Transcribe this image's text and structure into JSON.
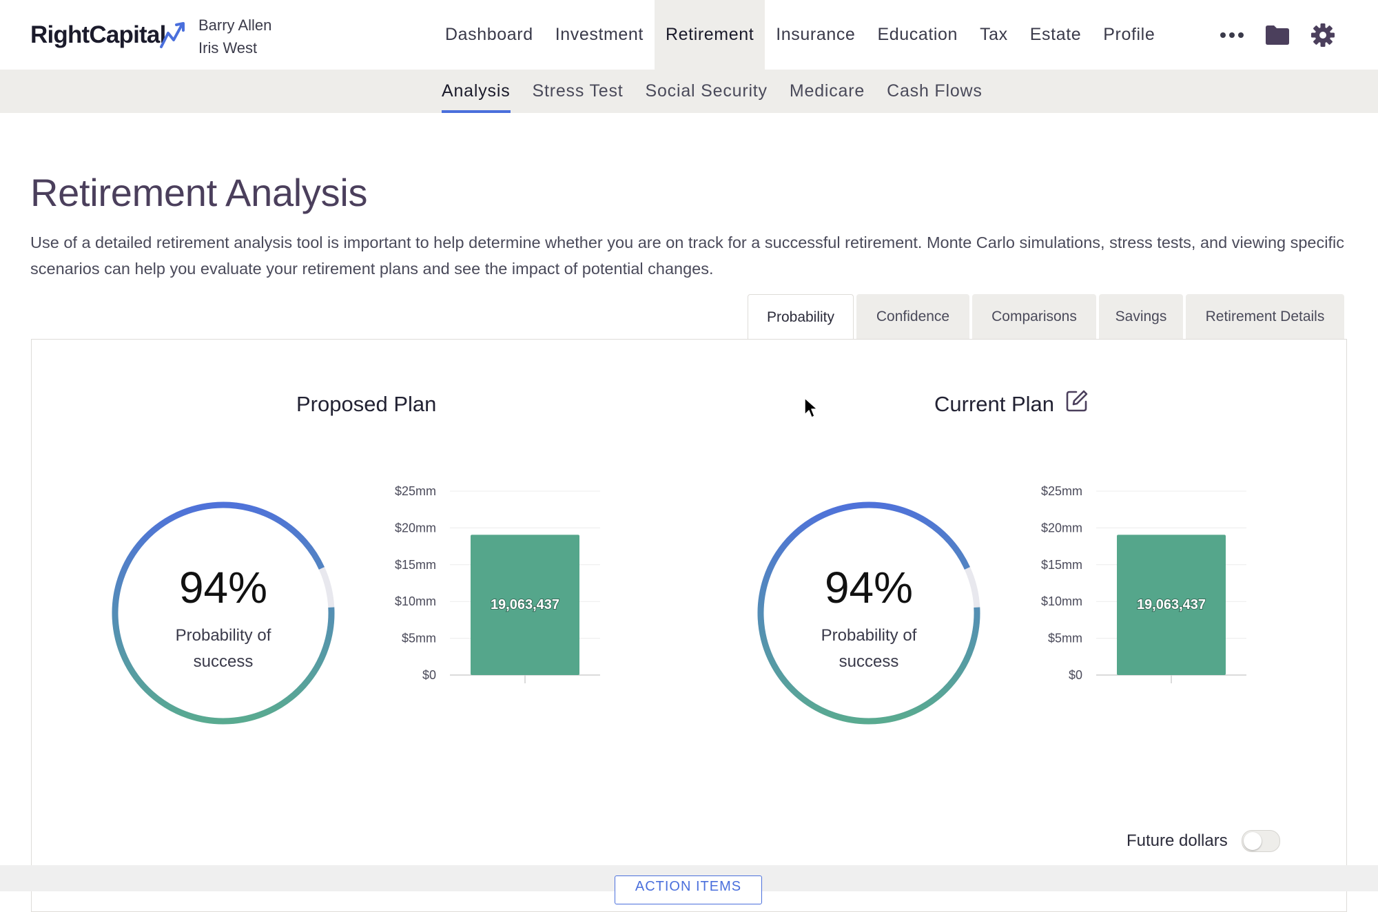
{
  "app": {
    "logo_text": "RightCapital",
    "clients": [
      "Barry Allen",
      "Iris West"
    ]
  },
  "main_nav": {
    "items": [
      "Dashboard",
      "Investment",
      "Retirement",
      "Insurance",
      "Education",
      "Tax",
      "Estate",
      "Profile"
    ],
    "active": "Retirement",
    "icons": [
      "more-icon",
      "folder-icon",
      "gear-icon"
    ]
  },
  "sub_nav": {
    "items": [
      "Analysis",
      "Stress Test",
      "Social Security",
      "Medicare",
      "Cash Flows"
    ],
    "active": "Analysis"
  },
  "page": {
    "title": "Retirement Analysis",
    "description": "Use of a detailed retirement analysis tool is important to help determine whether you are on track for a successful retirement. Monte Carlo simulations, stress tests, and viewing specific scenarios can help you evaluate your retirement plans and see the impact of potential changes."
  },
  "tabs": {
    "items": [
      "Probability",
      "Confidence",
      "Comparisons",
      "Savings",
      "Retirement Details"
    ],
    "active": "Probability"
  },
  "plans": [
    {
      "title": "Proposed Plan",
      "editable": false,
      "probability_pct": "94%",
      "probability_fraction": 0.94,
      "probability_label": "Probability of success",
      "chart_value_label": "19,063,437"
    },
    {
      "title": "Current Plan",
      "editable": true,
      "probability_pct": "94%",
      "probability_fraction": 0.94,
      "probability_label": "Probability of success",
      "chart_value_label": "19,063,437"
    }
  ],
  "chart_data": [
    {
      "type": "bar",
      "categories": [
        ""
      ],
      "values": [
        19063437
      ],
      "data_labels": [
        "19,063,437"
      ],
      "ylim": [
        0,
        25000000
      ],
      "y_ticks": [
        0,
        5000000,
        10000000,
        15000000,
        20000000,
        25000000
      ],
      "y_tick_labels": [
        "$0",
        "$5mm",
        "$10mm",
        "$15mm",
        "$20mm",
        "$25mm"
      ],
      "grid": true,
      "color": "#55a68b"
    },
    {
      "type": "bar",
      "categories": [
        ""
      ],
      "values": [
        19063437
      ],
      "data_labels": [
        "19,063,437"
      ],
      "ylim": [
        0,
        25000000
      ],
      "y_ticks": [
        0,
        5000000,
        10000000,
        15000000,
        20000000,
        25000000
      ],
      "y_tick_labels": [
        "$0",
        "$5mm",
        "$10mm",
        "$15mm",
        "$20mm",
        "$25mm"
      ],
      "grid": true,
      "color": "#55a68b"
    }
  ],
  "controls": {
    "future_dollars_label": "Future dollars",
    "future_dollars_on": false
  },
  "bottom": {
    "action_items_label": "ACTION ITEMS"
  },
  "colors": {
    "accent": "#4a6fdc",
    "bar": "#55a68b",
    "gauge_start": "#4f72d9",
    "gauge_end": "#59aa90",
    "gauge_track": "#e8e8ee"
  }
}
